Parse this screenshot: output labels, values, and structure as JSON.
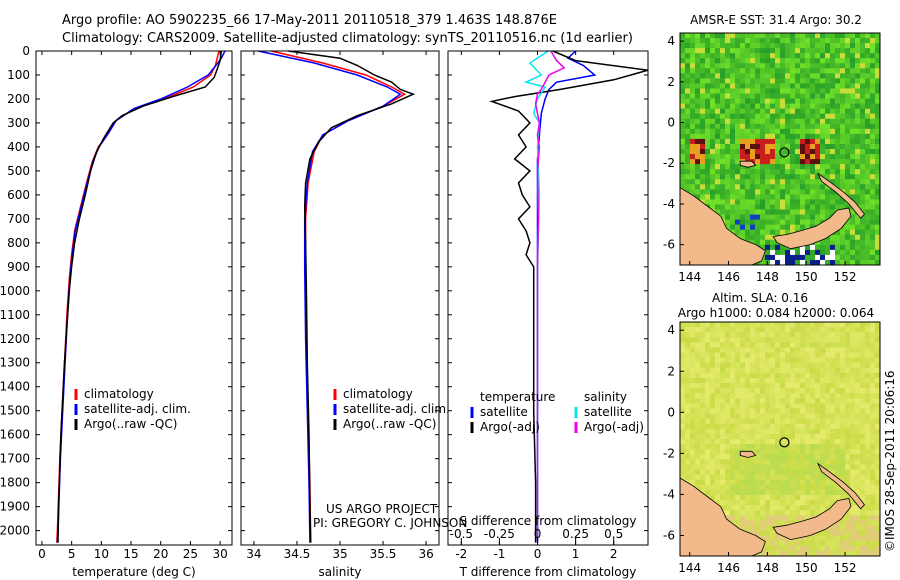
{
  "header": {
    "line1": "Argo profile: AO 5902235_66 17-May-2011 20110518_379 1.463S 148.876E",
    "line2": "Climatology: CARS2009. Satellite-adjusted climatology: synTS_20110516.nc (1d earlier)"
  },
  "credit": {
    "project": "US ARGO PROJECT",
    "pi": "PI: GREGORY C. JOHNSON",
    "stamp": "©IMOS 28-Sep-2011 20:06:16"
  },
  "colors": {
    "climatology": "#ff0000",
    "satellite": "#0000ff",
    "argo": "#000000",
    "salinity_satellite": "#00e5ee",
    "salinity_argo": "#ee00ee",
    "land": "#f2b98a",
    "sst_field": "#44cc33",
    "sla_field": "#d8e85a"
  },
  "chart_data": [
    {
      "id": "temperature",
      "type": "line",
      "xlabel": "temperature (deg C)",
      "ylabel": "",
      "xlim": [
        -1,
        32
      ],
      "ylim": [
        2060,
        0
      ],
      "xticks": [
        0,
        5,
        10,
        15,
        20,
        25,
        30
      ],
      "yticks": [
        0,
        100,
        200,
        300,
        400,
        500,
        600,
        700,
        800,
        900,
        1000,
        1100,
        1200,
        1300,
        1400,
        1500,
        1600,
        1700,
        1800,
        1900,
        2000
      ],
      "legend": [
        "climatology",
        "satellite-adj. clim.",
        "Argo(..raw -QC)"
      ],
      "legend_position": "bottom-right",
      "series": [
        {
          "name": "climatology",
          "color": "#ff0000",
          "points": [
            [
              29.8,
              0
            ],
            [
              29.5,
              30
            ],
            [
              29.2,
              60
            ],
            [
              28.4,
              100
            ],
            [
              25.5,
              150
            ],
            [
              20.5,
              200
            ],
            [
              15.5,
              240
            ],
            [
              12.5,
              290
            ],
            [
              11.0,
              350
            ],
            [
              9.5,
              400
            ],
            [
              8.5,
              460
            ],
            [
              7.5,
              550
            ],
            [
              6.5,
              650
            ],
            [
              5.5,
              750
            ],
            [
              5.0,
              850
            ],
            [
              4.6,
              950
            ],
            [
              4.2,
              1100
            ],
            [
              3.9,
              1250
            ],
            [
              3.6,
              1400
            ],
            [
              3.3,
              1550
            ],
            [
              3.0,
              1700
            ],
            [
              2.8,
              1850
            ],
            [
              2.6,
              2000
            ],
            [
              2.5,
              2050
            ]
          ]
        },
        {
          "name": "satellite-adj. clim.",
          "color": "#0000ff",
          "points": [
            [
              30.8,
              0
            ],
            [
              30.2,
              30
            ],
            [
              29.3,
              60
            ],
            [
              28.0,
              100
            ],
            [
              24.5,
              150
            ],
            [
              20.0,
              200
            ],
            [
              15.5,
              240
            ],
            [
              12.5,
              290
            ],
            [
              11.0,
              350
            ],
            [
              9.6,
              400
            ],
            [
              8.6,
              460
            ],
            [
              7.6,
              550
            ],
            [
              6.6,
              650
            ],
            [
              5.6,
              750
            ],
            [
              5.1,
              850
            ],
            [
              4.7,
              950
            ],
            [
              4.3,
              1100
            ],
            [
              4.0,
              1250
            ],
            [
              3.7,
              1400
            ],
            [
              3.4,
              1550
            ],
            [
              3.1,
              1700
            ],
            [
              2.9,
              1850
            ],
            [
              2.7,
              2000
            ],
            [
              2.6,
              2050
            ]
          ]
        },
        {
          "name": "Argo(..raw -QC)",
          "color": "#000000",
          "points": [
            [
              30.2,
              0
            ],
            [
              30.0,
              40
            ],
            [
              29.6,
              70
            ],
            [
              29.0,
              110
            ],
            [
              27.5,
              150
            ],
            [
              22.0,
              190
            ],
            [
              17.0,
              230
            ],
            [
              13.5,
              270
            ],
            [
              12.0,
              300
            ],
            [
              10.5,
              360
            ],
            [
              9.2,
              420
            ],
            [
              8.2,
              500
            ],
            [
              7.3,
              600
            ],
            [
              6.3,
              700
            ],
            [
              5.5,
              800
            ],
            [
              5.0,
              900
            ],
            [
              4.6,
              1000
            ],
            [
              4.2,
              1150
            ],
            [
              3.8,
              1300
            ],
            [
              3.5,
              1450
            ],
            [
              3.2,
              1600
            ],
            [
              3.0,
              1750
            ],
            [
              2.8,
              1900
            ],
            [
              2.7,
              2050
            ]
          ]
        }
      ]
    },
    {
      "id": "salinity",
      "type": "line",
      "xlabel": "salinity",
      "ylabel": "",
      "xlim": [
        33.85,
        36.15
      ],
      "ylim": [
        2060,
        0
      ],
      "xticks": [
        34,
        34.5,
        35,
        35.5,
        36
      ],
      "legend": [
        "climatology",
        "satellite-adj. clim.",
        "Argo(..raw -QC)"
      ],
      "legend_position": "bottom-right",
      "series": [
        {
          "name": "climatology",
          "color": "#ff0000",
          "points": [
            [
              34.2,
              0
            ],
            [
              34.8,
              50
            ],
            [
              35.3,
              100
            ],
            [
              35.6,
              150
            ],
            [
              35.75,
              180
            ],
            [
              35.5,
              230
            ],
            [
              35.1,
              290
            ],
            [
              34.8,
              350
            ],
            [
              34.7,
              420
            ],
            [
              34.63,
              550
            ],
            [
              34.6,
              700
            ],
            [
              34.6,
              900
            ],
            [
              34.61,
              1200
            ],
            [
              34.63,
              1500
            ],
            [
              34.65,
              1800
            ],
            [
              34.66,
              2050
            ]
          ]
        },
        {
          "name": "satellite-adj. clim.",
          "color": "#0000ff",
          "points": [
            [
              34.05,
              0
            ],
            [
              34.7,
              50
            ],
            [
              35.2,
              100
            ],
            [
              35.55,
              150
            ],
            [
              35.7,
              180
            ],
            [
              35.5,
              230
            ],
            [
              35.1,
              290
            ],
            [
              34.8,
              350
            ],
            [
              34.68,
              420
            ],
            [
              34.62,
              550
            ],
            [
              34.59,
              700
            ],
            [
              34.59,
              900
            ],
            [
              34.6,
              1200
            ],
            [
              34.62,
              1500
            ],
            [
              34.64,
              1800
            ],
            [
              34.65,
              2050
            ]
          ]
        },
        {
          "name": "Argo(..raw -QC)",
          "color": "#000000",
          "points": [
            [
              34.4,
              0
            ],
            [
              35.0,
              30
            ],
            [
              35.2,
              60
            ],
            [
              35.4,
              100
            ],
            [
              35.6,
              130
            ],
            [
              35.7,
              160
            ],
            [
              35.85,
              180
            ],
            [
              35.6,
              220
            ],
            [
              35.2,
              270
            ],
            [
              34.9,
              320
            ],
            [
              34.75,
              380
            ],
            [
              34.65,
              450
            ],
            [
              34.6,
              550
            ],
            [
              34.59,
              650
            ],
            [
              34.6,
              800
            ],
            [
              34.61,
              1000
            ],
            [
              34.62,
              1300
            ],
            [
              34.64,
              1600
            ],
            [
              34.65,
              1900
            ],
            [
              34.66,
              2050
            ]
          ]
        }
      ]
    },
    {
      "id": "difference",
      "type": "line",
      "xlabel": "T difference from climatology",
      "x2label": "S difference from climatology",
      "xlim": [
        -2.35,
        2.9
      ],
      "ylim": [
        2060,
        0
      ],
      "xticks": [
        -2,
        -1,
        0,
        1,
        2
      ],
      "x2ticks": [
        "-0.5",
        "-0.25",
        "0",
        "0.25",
        "0.5"
      ],
      "legend_columns": [
        {
          "title": "temperature",
          "entries": [
            "satellite",
            "Argo(-adj)"
          ]
        },
        {
          "title": "salinity",
          "entries": [
            "satellite",
            "Argo(-adj)"
          ]
        }
      ],
      "legend_position": "bottom-right",
      "series": [
        {
          "name": "temperature satellite",
          "color": "#0000ff",
          "points": [
            [
              1.0,
              0
            ],
            [
              0.8,
              30
            ],
            [
              1.2,
              60
            ],
            [
              1.5,
              100
            ],
            [
              0.5,
              130
            ],
            [
              0.3,
              160
            ],
            [
              0.2,
              200
            ],
            [
              0.1,
              260
            ],
            [
              0.05,
              350
            ],
            [
              0.0,
              450
            ],
            [
              0.0,
              700
            ],
            [
              0.0,
              1000
            ],
            [
              0.0,
              1500
            ],
            [
              0.0,
              2050
            ]
          ]
        },
        {
          "name": "temperature Argo(-adj)",
          "color": "#000000",
          "points": [
            [
              0.4,
              0
            ],
            [
              1.0,
              40
            ],
            [
              2.9,
              80
            ],
            [
              2.0,
              120
            ],
            [
              0.6,
              160
            ],
            [
              -0.6,
              190
            ],
            [
              -1.2,
              210
            ],
            [
              -0.5,
              250
            ],
            [
              -0.2,
              300
            ],
            [
              -0.5,
              350
            ],
            [
              -0.3,
              400
            ],
            [
              -0.6,
              450
            ],
            [
              -0.2,
              500
            ],
            [
              -0.5,
              550
            ],
            [
              -0.4,
              600
            ],
            [
              -0.2,
              650
            ],
            [
              -0.5,
              700
            ],
            [
              -0.3,
              750
            ],
            [
              -0.2,
              800
            ],
            [
              -0.3,
              850
            ],
            [
              -0.1,
              900
            ],
            [
              -0.1,
              1000
            ],
            [
              -0.1,
              1200
            ],
            [
              -0.1,
              1500
            ],
            [
              -0.05,
              1800
            ],
            [
              -0.05,
              2050
            ]
          ]
        },
        {
          "name": "salinity satellite",
          "color": "#00e5ee",
          "points": [
            [
              0.28,
              0
            ],
            [
              -0.2,
              50
            ],
            [
              0.1,
              100
            ],
            [
              -0.3,
              130
            ],
            [
              0.2,
              150
            ],
            [
              0.0,
              200
            ],
            [
              -0.1,
              260
            ],
            [
              0.05,
              300
            ],
            [
              0.0,
              400
            ],
            [
              0.05,
              600
            ],
            [
              0.0,
              900
            ],
            [
              0.0,
              1200
            ],
            [
              0.0,
              1600
            ],
            [
              0.0,
              2050
            ]
          ]
        },
        {
          "name": "salinity Argo(-adj)",
          "color": "#ee00ee",
          "points": [
            [
              0.35,
              0
            ],
            [
              0.5,
              40
            ],
            [
              0.7,
              70
            ],
            [
              0.3,
              100
            ],
            [
              0.2,
              130
            ],
            [
              0.1,
              160
            ],
            [
              0.0,
              180
            ],
            [
              -0.05,
              220
            ],
            [
              0.0,
              260
            ],
            [
              0.05,
              300
            ],
            [
              0.0,
              350
            ],
            [
              0.05,
              400
            ],
            [
              0.0,
              500
            ],
            [
              0.02,
              700
            ],
            [
              0.0,
              900
            ],
            [
              0.0,
              1200
            ],
            [
              0.0,
              1600
            ],
            [
              0.0,
              2050
            ]
          ]
        }
      ]
    },
    {
      "id": "sst_map",
      "type": "heatmap",
      "title": "AMSR-E SST: 31.4 Argo: 30.2",
      "xlim": [
        143.5,
        153.8
      ],
      "ylim": [
        -7.0,
        4.4
      ],
      "xticks": [
        144,
        146,
        148,
        150,
        152
      ],
      "yticks": [
        4,
        2,
        0,
        -2,
        -4,
        -6
      ],
      "float_position": {
        "lon": 148.876,
        "lat": -1.463
      }
    },
    {
      "id": "sla_map",
      "type": "heatmap",
      "title": "Altim. SLA: 0.16",
      "subtitle": "Argo h1000: 0.084 h2000: 0.064",
      "xlim": [
        143.5,
        153.8
      ],
      "ylim": [
        -7.0,
        4.4
      ],
      "xticks": [
        144,
        146,
        148,
        150,
        152
      ],
      "yticks": [
        4,
        2,
        0,
        -2,
        -4,
        -6
      ],
      "float_position": {
        "lon": 148.876,
        "lat": -1.463
      }
    }
  ]
}
